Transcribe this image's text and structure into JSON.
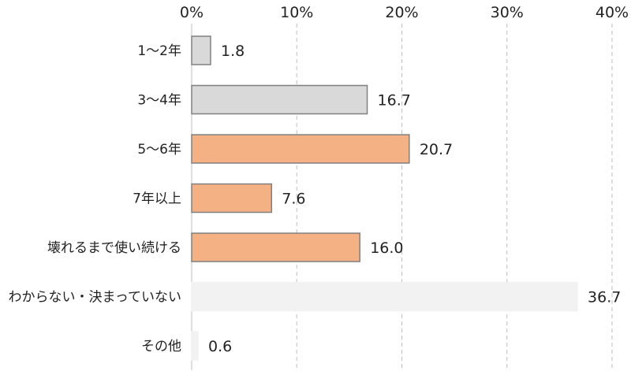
{
  "chart_data": {
    "type": "bar",
    "orientation": "horizontal",
    "categories": [
      "1〜2年",
      "3〜4年",
      "5〜6年",
      "7年以上",
      "壊れるまで使い続ける",
      "わからない・決まっていない",
      "その他"
    ],
    "values": [
      1.8,
      16.7,
      20.7,
      7.6,
      16.0,
      36.7,
      0.6
    ],
    "value_labels": [
      "1.8",
      "16.7",
      "20.7",
      "7.6",
      "16.0",
      "36.7",
      "0.6"
    ],
    "bar_colors": [
      "#d9d9d9",
      "#d9d9d9",
      "#f4b183",
      "#f4b183",
      "#f4b183",
      "#f2f2f2",
      "#f2f2f2"
    ],
    "bar_edge_colors": [
      "#808080",
      "#808080",
      "#808080",
      "#808080",
      "#808080",
      "#f2f2f2",
      "#f2f2f2"
    ],
    "xlim": [
      0,
      40
    ],
    "x_ticks": [
      0,
      10,
      20,
      30,
      40
    ],
    "x_tick_labels": [
      "0%",
      "10%",
      "20%",
      "30%",
      "40%"
    ],
    "x_axis_position": "top",
    "grid": true,
    "grid_style": "dashed",
    "grid_color": "#bfbfbf",
    "title": "",
    "xlabel": "",
    "ylabel": ""
  }
}
